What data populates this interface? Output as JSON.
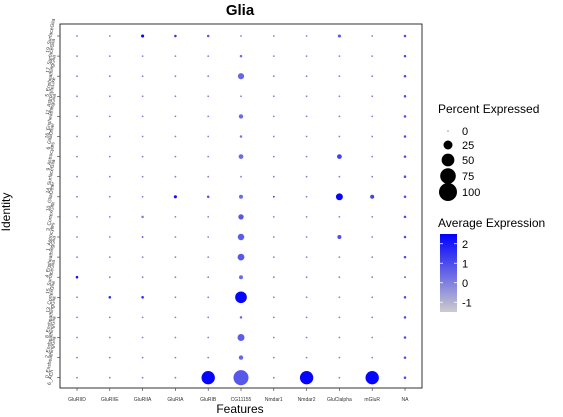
{
  "chart_data": {
    "type": "dotplot",
    "title": "Glia",
    "xlabel": "Features",
    "ylabel": "Identity",
    "features": [
      "GluRIID",
      "GluRIIE",
      "GluRIIA",
      "GluRIA",
      "GluRIB",
      "CG11155",
      "Nmdar1",
      "Nmdar2",
      "GluClalpha",
      "mGluR",
      "NA"
    ],
    "identities": [
      "19_SurfaceGlia",
      "17_SurfaceGlia",
      "5_EnsheathingGlia",
      "11_AstrocyteLike",
      "16_EnsheathingGlia",
      "6_GliaOther",
      "9_Astrocytes",
      "14_SurfaceGlia",
      "10_GliaOther",
      "3_CortexGlia",
      "1_Astrocytes",
      "4_EnsheathingGlia",
      "15_SurfaceGlia",
      "13_CortexGlia",
      "8_EnsheathingGlia",
      "2_EnsheathingGlia",
      "0_EnsheathingGlia",
      "6_ACh"
    ],
    "percent_expressed": [
      [
        1,
        1,
        3,
        2,
        2,
        1,
        1,
        1,
        3,
        1,
        2
      ],
      [
        1,
        1,
        1,
        1,
        1,
        2,
        1,
        1,
        1,
        1,
        2
      ],
      [
        1,
        1,
        1,
        1,
        1,
        12,
        1,
        1,
        1,
        1,
        2
      ],
      [
        1,
        1,
        1,
        1,
        1,
        1,
        1,
        1,
        1,
        1,
        2
      ],
      [
        1,
        1,
        1,
        1,
        1,
        6,
        1,
        1,
        1,
        1,
        2
      ],
      [
        1,
        1,
        1,
        1,
        1,
        2,
        1,
        1,
        1,
        1,
        2
      ],
      [
        1,
        1,
        1,
        1,
        1,
        7,
        1,
        1,
        7,
        1,
        2
      ],
      [
        1,
        1,
        1,
        1,
        1,
        1,
        1,
        1,
        1,
        1,
        2
      ],
      [
        1,
        1,
        1,
        3,
        2,
        5,
        1,
        1,
        15,
        5,
        2
      ],
      [
        1,
        1,
        2,
        1,
        1,
        9,
        1,
        1,
        1,
        1,
        2
      ],
      [
        1,
        1,
        1,
        1,
        1,
        13,
        1,
        1,
        5,
        1,
        2
      ],
      [
        1,
        1,
        1,
        1,
        1,
        14,
        1,
        1,
        1,
        1,
        2
      ],
      [
        2,
        1,
        1,
        1,
        1,
        5,
        1,
        1,
        1,
        1,
        1
      ],
      [
        1,
        2,
        2,
        1,
        1,
        42,
        1,
        1,
        1,
        1,
        2
      ],
      [
        1,
        1,
        1,
        1,
        1,
        2,
        1,
        1,
        1,
        1,
        2
      ],
      [
        1,
        1,
        1,
        1,
        1,
        15,
        1,
        1,
        1,
        1,
        2
      ],
      [
        1,
        1,
        1,
        1,
        1,
        6,
        1,
        1,
        1,
        1,
        2
      ],
      [
        1,
        1,
        1,
        1,
        55,
        70,
        1,
        55,
        1,
        55,
        2
      ]
    ],
    "average_expression": [
      [
        0,
        0,
        2.4,
        1.5,
        0.8,
        0,
        0,
        0,
        0.8,
        0,
        1
      ],
      [
        0,
        0,
        0,
        0,
        0,
        0.4,
        0,
        0,
        0,
        0,
        1
      ],
      [
        0,
        0,
        0,
        0,
        0,
        0.5,
        0,
        0,
        0,
        0,
        1
      ],
      [
        0,
        0,
        0,
        0,
        0,
        0,
        0,
        0,
        0,
        0,
        1
      ],
      [
        0,
        0,
        0,
        0,
        0,
        0.4,
        0,
        0,
        0,
        0,
        1
      ],
      [
        0,
        0,
        0,
        0,
        0,
        0.2,
        0,
        0,
        0,
        0,
        1
      ],
      [
        0,
        0,
        0,
        0,
        0,
        0.4,
        0,
        0,
        1.2,
        0,
        1
      ],
      [
        0,
        0,
        0,
        0,
        0,
        0,
        0,
        0,
        0,
        0,
        1
      ],
      [
        0,
        0,
        0,
        2.2,
        0.8,
        0.4,
        1.5,
        0,
        2.4,
        1.2,
        1
      ],
      [
        0,
        0,
        0,
        0,
        0,
        0.8,
        0,
        0,
        0,
        0,
        1
      ],
      [
        0,
        0,
        1.2,
        0,
        0,
        0.7,
        0,
        0,
        1.0,
        0,
        1
      ],
      [
        0,
        0,
        0,
        0,
        0,
        0.8,
        0,
        0,
        0,
        0,
        1
      ],
      [
        2.2,
        0,
        0,
        0,
        0,
        0.4,
        0,
        0,
        0,
        0,
        1
      ],
      [
        0,
        1.8,
        1.8,
        0,
        0,
        2.4,
        0,
        0,
        0,
        0,
        1
      ],
      [
        0,
        0,
        0,
        0,
        0,
        0.4,
        0,
        0,
        0,
        0,
        1
      ],
      [
        0,
        0,
        0,
        0,
        0,
        0.7,
        0,
        0,
        0,
        0,
        1
      ],
      [
        0,
        0,
        0,
        0,
        0,
        0.5,
        0,
        0,
        0,
        0,
        1
      ],
      [
        0,
        0,
        0,
        0,
        2.4,
        0.8,
        0,
        2.4,
        0,
        2.4,
        1
      ]
    ],
    "legend_size": {
      "title": "Percent Expressed",
      "values": [
        0,
        25,
        50,
        75,
        100
      ],
      "labels": [
        "0",
        "25",
        "50",
        "75",
        "100"
      ]
    },
    "legend_color": {
      "title": "Average Expression",
      "range": [
        -1.5,
        2.5
      ],
      "ticks": [
        2,
        1,
        0,
        -1
      ],
      "labels": [
        "2",
        "1",
        "0",
        "-1"
      ],
      "colors": [
        "#cccccc",
        "#0000ff"
      ]
    },
    "grid": false,
    "legend_placement": "right"
  }
}
